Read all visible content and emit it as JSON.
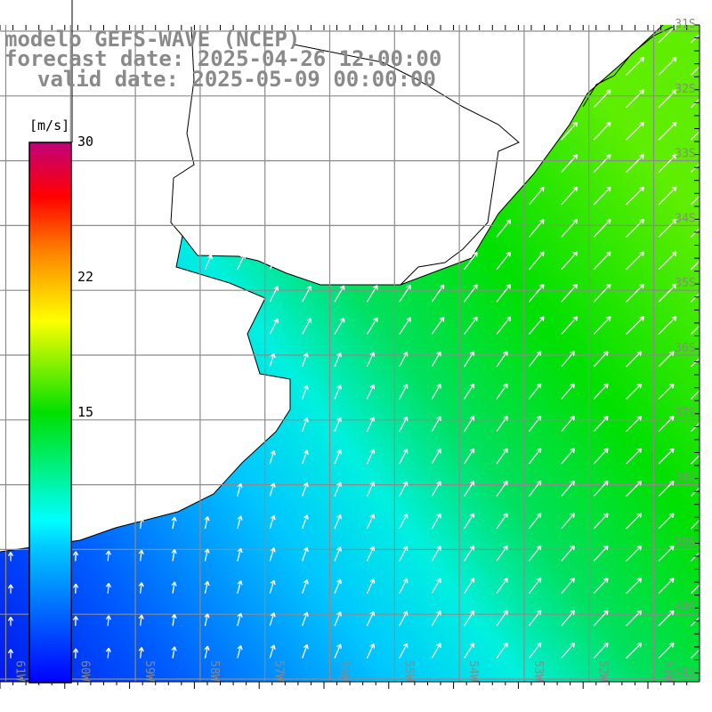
{
  "header": {
    "model": "modelo GEFS-WAVE (NCEP)",
    "forecast": "forecast date: 2025-04-26 12:00:00",
    "valid": "valid date: 2025-05-09 00:00:00"
  },
  "colorbar": {
    "unit": "[m/s]",
    "ticks": [
      "30",
      "22",
      "15"
    ],
    "tick_values": [
      30,
      22,
      15
    ],
    "min": 0,
    "max": 30,
    "colors": [
      "#0000ff",
      "#00ffff",
      "#00e000",
      "#ffff00",
      "#ff0000",
      "#c0007a"
    ]
  },
  "axes": {
    "lon_labels": [
      "61W",
      "60W",
      "59W",
      "58W",
      "57W",
      "56W",
      "55W",
      "54W",
      "53W",
      "52W",
      "51W"
    ],
    "lat_labels": [
      "31S",
      "32S",
      "33S",
      "34S",
      "35S",
      "36S",
      "37S",
      "38S",
      "39S",
      "40S",
      "41S"
    ]
  },
  "colors": {
    "land": "#ffffff",
    "coast": "#000000",
    "grid": "#8c8c8c",
    "label": "#8a8a8a",
    "arrow": "#ffffff"
  }
}
